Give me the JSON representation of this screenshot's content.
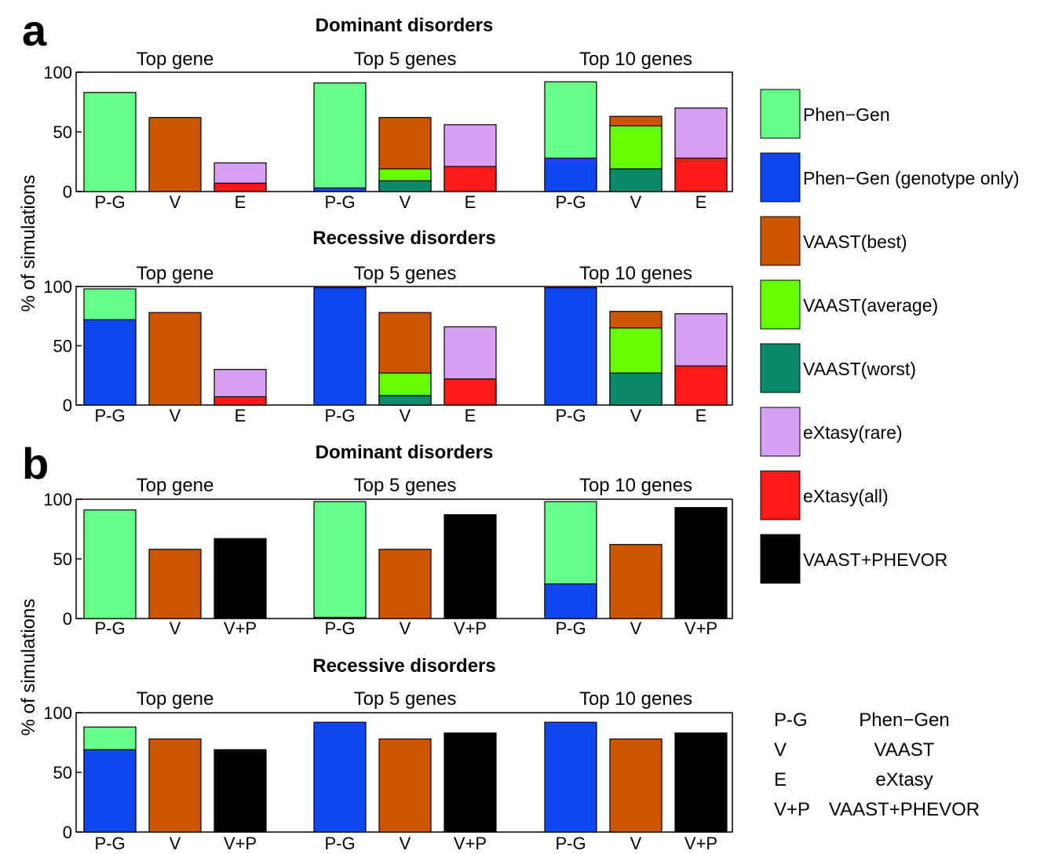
{
  "panel_letters": [
    "a",
    "b"
  ],
  "y_axis_label": "% of simulations",
  "colors": {
    "Phen-Gen": "#66ff88",
    "Phen-Gen (genotype only)": "#0f47f2",
    "VAAST(best)": "#cc5500",
    "VAAST(average)": "#66ff00",
    "VAAST(worst)": "#0a8a6a",
    "eXtasy(rare)": "#d9a0f2",
    "eXtasy(all)": "#ff1a1a",
    "VAAST+PHEVOR": "#000000"
  },
  "legend": [
    {
      "label": "Phen−Gen",
      "color": "#66ff88"
    },
    {
      "label": "Phen−Gen (genotype only)",
      "color": "#0f47f2"
    },
    {
      "label": "VAAST(best)",
      "color": "#cc5500"
    },
    {
      "label": "VAAST(average)",
      "color": "#66ff00"
    },
    {
      "label": "VAAST(worst)",
      "color": "#0a8a6a"
    },
    {
      "label": "eXtasy(rare)",
      "color": "#d9a0f2"
    },
    {
      "label": "eXtasy(all)",
      "color": "#ff1a1a"
    },
    {
      "label": "VAAST+PHEVOR",
      "color": "#000000"
    }
  ],
  "abbreviations": [
    {
      "abbr": "P-G",
      "full": "Phen−Gen"
    },
    {
      "abbr": "V",
      "full": "VAAST"
    },
    {
      "abbr": "E",
      "full": "eXtasy"
    },
    {
      "abbr": "V+P",
      "full": "VAAST+PHEVOR"
    }
  ],
  "chart_data": [
    {
      "panel": "a",
      "type": "bar",
      "stacking": "overlay",
      "title": "Dominant disorders",
      "ylabel": "% of simulations",
      "ylim": [
        0,
        100
      ],
      "yticks": [
        0,
        50,
        100
      ],
      "groups": [
        {
          "label": "Top gene",
          "bars": [
            {
              "category": "P-G",
              "segments": [
                {
                  "series": "Phen-Gen",
                  "value": 83
                }
              ]
            },
            {
              "category": "V",
              "segments": [
                {
                  "series": "VAAST(best)",
                  "value": 62
                }
              ]
            },
            {
              "category": "E",
              "segments": [
                {
                  "series": "eXtasy(rare)",
                  "value": 24
                },
                {
                  "series": "eXtasy(all)",
                  "value": 7
                }
              ]
            }
          ]
        },
        {
          "label": "Top 5 genes",
          "bars": [
            {
              "category": "P-G",
              "segments": [
                {
                  "series": "Phen-Gen",
                  "value": 91
                },
                {
                  "series": "Phen-Gen (genotype only)",
                  "value": 3
                }
              ]
            },
            {
              "category": "V",
              "segments": [
                {
                  "series": "VAAST(best)",
                  "value": 62
                },
                {
                  "series": "VAAST(average)",
                  "value": 19
                },
                {
                  "series": "VAAST(worst)",
                  "value": 9
                }
              ]
            },
            {
              "category": "E",
              "segments": [
                {
                  "series": "eXtasy(rare)",
                  "value": 56
                },
                {
                  "series": "eXtasy(all)",
                  "value": 21
                }
              ]
            }
          ]
        },
        {
          "label": "Top 10 genes",
          "bars": [
            {
              "category": "P-G",
              "segments": [
                {
                  "series": "Phen-Gen",
                  "value": 92
                },
                {
                  "series": "Phen-Gen (genotype only)",
                  "value": 28
                }
              ]
            },
            {
              "category": "V",
              "segments": [
                {
                  "series": "VAAST(best)",
                  "value": 63
                },
                {
                  "series": "VAAST(average)",
                  "value": 55
                },
                {
                  "series": "VAAST(worst)",
                  "value": 19
                }
              ]
            },
            {
              "category": "E",
              "segments": [
                {
                  "series": "eXtasy(rare)",
                  "value": 70
                },
                {
                  "series": "eXtasy(all)",
                  "value": 28
                }
              ]
            }
          ]
        }
      ]
    },
    {
      "panel": "a",
      "type": "bar",
      "stacking": "overlay",
      "title": "Recessive disorders",
      "ylabel": "% of simulations",
      "ylim": [
        0,
        100
      ],
      "yticks": [
        0,
        50,
        100
      ],
      "groups": [
        {
          "label": "Top gene",
          "bars": [
            {
              "category": "P-G",
              "segments": [
                {
                  "series": "Phen-Gen",
                  "value": 98
                },
                {
                  "series": "Phen-Gen (genotype only)",
                  "value": 72
                }
              ]
            },
            {
              "category": "V",
              "segments": [
                {
                  "series": "VAAST(best)",
                  "value": 78
                }
              ]
            },
            {
              "category": "E",
              "segments": [
                {
                  "series": "eXtasy(rare)",
                  "value": 30
                },
                {
                  "series": "eXtasy(all)",
                  "value": 7
                }
              ]
            }
          ]
        },
        {
          "label": "Top 5 genes",
          "bars": [
            {
              "category": "P-G",
              "segments": [
                {
                  "series": "Phen-Gen (genotype only)",
                  "value": 99
                }
              ]
            },
            {
              "category": "V",
              "segments": [
                {
                  "series": "VAAST(best)",
                  "value": 78
                },
                {
                  "series": "VAAST(average)",
                  "value": 27
                },
                {
                  "series": "VAAST(worst)",
                  "value": 8
                }
              ]
            },
            {
              "category": "E",
              "segments": [
                {
                  "series": "eXtasy(rare)",
                  "value": 66
                },
                {
                  "series": "eXtasy(all)",
                  "value": 22
                }
              ]
            }
          ]
        },
        {
          "label": "Top 10 genes",
          "bars": [
            {
              "category": "P-G",
              "segments": [
                {
                  "series": "Phen-Gen (genotype only)",
                  "value": 99
                }
              ]
            },
            {
              "category": "V",
              "segments": [
                {
                  "series": "VAAST(best)",
                  "value": 79
                },
                {
                  "series": "VAAST(average)",
                  "value": 65
                },
                {
                  "series": "VAAST(worst)",
                  "value": 27
                }
              ]
            },
            {
              "category": "E",
              "segments": [
                {
                  "series": "eXtasy(rare)",
                  "value": 77
                },
                {
                  "series": "eXtasy(all)",
                  "value": 33
                }
              ]
            }
          ]
        }
      ]
    },
    {
      "panel": "b",
      "type": "bar",
      "stacking": "overlay",
      "title": "Dominant disorders",
      "ylabel": "% of simulations",
      "ylim": [
        0,
        100
      ],
      "yticks": [
        0,
        50,
        100
      ],
      "groups": [
        {
          "label": "Top gene",
          "bars": [
            {
              "category": "P-G",
              "segments": [
                {
                  "series": "Phen-Gen",
                  "value": 91
                }
              ]
            },
            {
              "category": "V",
              "segments": [
                {
                  "series": "VAAST(best)",
                  "value": 58
                }
              ]
            },
            {
              "category": "V+P",
              "segments": [
                {
                  "series": "VAAST+PHEVOR",
                  "value": 67
                }
              ]
            }
          ]
        },
        {
          "label": "Top 5 genes",
          "bars": [
            {
              "category": "P-G",
              "segments": [
                {
                  "series": "Phen-Gen",
                  "value": 98
                },
                {
                  "series": "Phen-Gen (genotype only)",
                  "value": 1
                }
              ]
            },
            {
              "category": "V",
              "segments": [
                {
                  "series": "VAAST(best)",
                  "value": 58
                }
              ]
            },
            {
              "category": "V+P",
              "segments": [
                {
                  "series": "VAAST+PHEVOR",
                  "value": 87
                }
              ]
            }
          ]
        },
        {
          "label": "Top 10 genes",
          "bars": [
            {
              "category": "P-G",
              "segments": [
                {
                  "series": "Phen-Gen",
                  "value": 98
                },
                {
                  "series": "Phen-Gen (genotype only)",
                  "value": 29
                }
              ]
            },
            {
              "category": "V",
              "segments": [
                {
                  "series": "VAAST(best)",
                  "value": 62
                }
              ]
            },
            {
              "category": "V+P",
              "segments": [
                {
                  "series": "VAAST+PHEVOR",
                  "value": 93
                }
              ]
            }
          ]
        }
      ]
    },
    {
      "panel": "b",
      "type": "bar",
      "stacking": "overlay",
      "title": "Recessive disorders",
      "ylabel": "% of simulations",
      "ylim": [
        0,
        100
      ],
      "yticks": [
        0,
        50,
        100
      ],
      "groups": [
        {
          "label": "Top gene",
          "bars": [
            {
              "category": "P-G",
              "segments": [
                {
                  "series": "Phen-Gen",
                  "value": 88
                },
                {
                  "series": "Phen-Gen (genotype only)",
                  "value": 69
                }
              ]
            },
            {
              "category": "V",
              "segments": [
                {
                  "series": "VAAST(best)",
                  "value": 78
                }
              ]
            },
            {
              "category": "V+P",
              "segments": [
                {
                  "series": "VAAST+PHEVOR",
                  "value": 69
                }
              ]
            }
          ]
        },
        {
          "label": "Top 5 genes",
          "bars": [
            {
              "category": "P-G",
              "segments": [
                {
                  "series": "Phen-Gen (genotype only)",
                  "value": 92
                }
              ]
            },
            {
              "category": "V",
              "segments": [
                {
                  "series": "VAAST(best)",
                  "value": 78
                }
              ]
            },
            {
              "category": "V+P",
              "segments": [
                {
                  "series": "VAAST+PHEVOR",
                  "value": 83
                }
              ]
            }
          ]
        },
        {
          "label": "Top 10 genes",
          "bars": [
            {
              "category": "P-G",
              "segments": [
                {
                  "series": "Phen-Gen (genotype only)",
                  "value": 92
                }
              ]
            },
            {
              "category": "V",
              "segments": [
                {
                  "series": "VAAST(best)",
                  "value": 78
                }
              ]
            },
            {
              "category": "V+P",
              "segments": [
                {
                  "series": "VAAST+PHEVOR",
                  "value": 83
                }
              ]
            }
          ]
        }
      ]
    }
  ]
}
